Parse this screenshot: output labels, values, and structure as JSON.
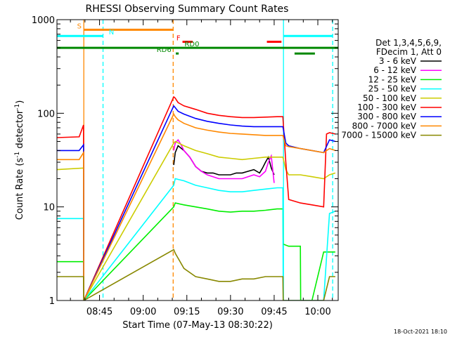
{
  "chart_data": {
    "type": "line",
    "title": "RHESSI Observing Summary Count Rates",
    "xlabel": "Start Time (07-May-13 08:30:22)",
    "ylabel_main": "Count Rate (s",
    "ylabel_sup": "-1",
    "ylabel_mid": " detector",
    "ylabel_close": ")",
    "x_unit": "minutes after 08:30:00",
    "xlim": [
      0.37,
      97.0
    ],
    "ylim": [
      1,
      1000
    ],
    "yscale": "log",
    "x_ticks": [
      {
        "label": "08:45",
        "value": 15
      },
      {
        "label": "09:00",
        "value": 30
      },
      {
        "label": "09:15",
        "value": 45
      },
      {
        "label": "09:30",
        "value": 60
      },
      {
        "label": "09:45",
        "value": 75
      },
      {
        "label": "10:00",
        "value": 90
      }
    ],
    "y_ticks": [
      {
        "label": "1",
        "value": 1
      },
      {
        "label": "10",
        "value": 10
      },
      {
        "label": "100",
        "value": 100
      },
      {
        "label": "1000",
        "value": 1000
      }
    ],
    "legend": {
      "header": [
        "Det 1,3,4,5,6,9,",
        "FDecim 1, Att 0"
      ],
      "placement": "right"
    },
    "series": [
      {
        "name": "3 - 6 keV",
        "color": "#000000",
        "x": [
          40.5,
          41,
          42,
          44,
          46,
          48,
          50,
          52,
          54,
          56,
          58,
          60,
          62,
          64,
          66,
          68,
          70,
          71,
          72,
          73,
          74,
          75
        ],
        "y": [
          28,
          38,
          45,
          40,
          34,
          27,
          24,
          23,
          23,
          22,
          22,
          22,
          23,
          23,
          24,
          25,
          23,
          26,
          30,
          34,
          26,
          22
        ]
      },
      {
        "name": "6 - 12 keV",
        "color": "#ff00ff",
        "x": [
          40.5,
          41,
          42,
          43,
          44,
          46,
          48,
          50,
          52,
          54,
          56,
          58,
          60,
          62,
          64,
          66,
          68,
          70,
          72,
          73,
          74,
          75
        ],
        "y": [
          40,
          48,
          52,
          46,
          40,
          34,
          27,
          24,
          22,
          21,
          20,
          20,
          20,
          20,
          20,
          21,
          22,
          21,
          24,
          30,
          35,
          18
        ]
      },
      {
        "name": "12 - 25 keV",
        "color": "#00ee00",
        "x": [
          0.4,
          9.5,
          9.6,
          40.5,
          41,
          44,
          48,
          52,
          56,
          60,
          64,
          68,
          72,
          76,
          78,
          78.1,
          80,
          84,
          84.1,
          88,
          92,
          96
        ],
        "y": [
          2.6,
          2.6,
          1.0,
          10,
          11,
          10.5,
          10,
          9.5,
          9,
          8.8,
          9,
          9,
          9.2,
          9.5,
          9.5,
          4.0,
          3.8,
          3.8,
          1.0,
          1.0,
          3.3,
          3.3
        ]
      },
      {
        "name": "25 - 50 keV",
        "color": "#00ffff",
        "x": [
          0.4,
          9.5,
          9.6,
          40.5,
          41,
          44,
          48,
          52,
          56,
          60,
          64,
          68,
          72,
          76,
          78,
          78.1,
          84,
          84.1,
          92,
          94,
          96
        ],
        "y": [
          7.5,
          7.5,
          1.0,
          17,
          20,
          19,
          17,
          16,
          15,
          14.5,
          14.5,
          15,
          15.5,
          16,
          16,
          1.0,
          1.0,
          1.0,
          1.0,
          8.5,
          9
        ]
      },
      {
        "name": "50 - 100 keV",
        "color": "#cccc00",
        "x": [
          0.4,
          9.5,
          9.6,
          40.5,
          41,
          44,
          48,
          52,
          56,
          60,
          64,
          68,
          72,
          76,
          78,
          79,
          80,
          84,
          88,
          92,
          94,
          96
        ],
        "y": [
          25,
          26,
          1.0,
          48,
          50,
          45,
          40,
          37,
          34,
          33,
          32,
          33,
          34,
          34,
          34,
          25,
          22,
          22,
          21,
          20,
          22,
          23
        ]
      },
      {
        "name": "100 - 300 keV",
        "color": "#ff0000",
        "x": [
          0.4,
          8,
          9.5,
          9.6,
          40.5,
          41,
          42,
          44,
          48,
          52,
          56,
          60,
          64,
          68,
          72,
          76,
          78,
          79,
          80,
          84,
          88,
          92,
          93,
          94,
          96
        ],
        "y": [
          55,
          56,
          75,
          1.0,
          150,
          145,
          130,
          120,
          110,
          100,
          95,
          92,
          90,
          90,
          91,
          92,
          92,
          30,
          12,
          11,
          10.5,
          10,
          60,
          62,
          60
        ]
      },
      {
        "name": "300 - 800 keV",
        "color": "#0000ff",
        "x": [
          0.4,
          8,
          9.5,
          9.6,
          40.5,
          41,
          42,
          44,
          48,
          52,
          56,
          60,
          64,
          68,
          72,
          76,
          78,
          79,
          80,
          84,
          88,
          92,
          94,
          96
        ],
        "y": [
          40,
          40,
          46,
          1.0,
          120,
          115,
          105,
          98,
          88,
          82,
          78,
          75,
          73,
          72,
          72,
          72,
          72,
          48,
          45,
          42,
          40,
          38,
          52,
          50
        ]
      },
      {
        "name": "800 - 7000 keV",
        "color": "#ff8800",
        "x": [
          0.4,
          8,
          9.5,
          9.6,
          40.5,
          41,
          42,
          44,
          48,
          52,
          56,
          60,
          64,
          68,
          72,
          76,
          78,
          79,
          80,
          84,
          88,
          92,
          94,
          96
        ],
        "y": [
          32,
          32,
          38,
          1.0,
          98,
          92,
          85,
          78,
          70,
          66,
          63,
          61,
          60,
          59,
          58,
          58,
          58,
          45,
          44,
          42,
          40,
          38,
          42,
          40
        ]
      },
      {
        "name": "7000 - 15000 keV",
        "color": "#888800",
        "x": [
          0.4,
          9.5,
          9.6,
          40.5,
          41,
          44,
          48,
          52,
          56,
          60,
          64,
          68,
          72,
          76,
          78,
          78.1,
          84,
          84.1,
          92,
          94,
          96
        ],
        "y": [
          1.8,
          1.8,
          1.0,
          3.5,
          3.2,
          2.2,
          1.8,
          1.7,
          1.6,
          1.6,
          1.7,
          1.7,
          1.8,
          1.8,
          1.8,
          1.0,
          1.0,
          1.0,
          1.0,
          1.8,
          1.8
        ]
      }
    ],
    "vertical_lines": [
      {
        "value": 9.6,
        "color": "#ff8800",
        "style": "solid"
      },
      {
        "value": 16.2,
        "color": "#00ffff",
        "style": "dashed"
      },
      {
        "value": 40.3,
        "color": "#ff8800",
        "style": "dashed"
      },
      {
        "value": 78.2,
        "color": "#00ffff",
        "style": "solid"
      },
      {
        "value": 95.1,
        "color": "#00ffff",
        "style": "dashed"
      }
    ],
    "flag_bars": [
      {
        "label": "S",
        "color": "#ff8800",
        "x_start": 9.6,
        "x_end": 40.3,
        "y": 780,
        "label_x": 7.3
      },
      {
        "label": "N",
        "color": "#00ffff",
        "x_start": 0.4,
        "x_end": 16.2,
        "y": 670,
        "label_x": 18.2
      },
      {
        "label": "",
        "color": "#00ffff",
        "x_start": 78.2,
        "x_end": 95.1,
        "y": 670
      },
      {
        "label": "F",
        "color": "#ff0000",
        "x_start": 43.5,
        "x_end": 47.0,
        "y": 580,
        "label_x": 41.4
      },
      {
        "label": "",
        "color": "#ff0000",
        "x_start": 72.5,
        "x_end": 77.5,
        "y": 580
      },
      {
        "label": "RD0",
        "color": "#008800",
        "x_start": 0.4,
        "x_end": 97.0,
        "y": 500,
        "label_x": 44.2
      },
      {
        "label": "RD6",
        "color": "#008800",
        "x_start": 41.2,
        "x_end": 42.2,
        "y": 435,
        "label_x": 34.6
      },
      {
        "label": "",
        "color": "#008800",
        "x_start": 82.0,
        "x_end": 89.0,
        "y": 435
      }
    ],
    "timestamp": "18-Oct-2021 18:10"
  }
}
